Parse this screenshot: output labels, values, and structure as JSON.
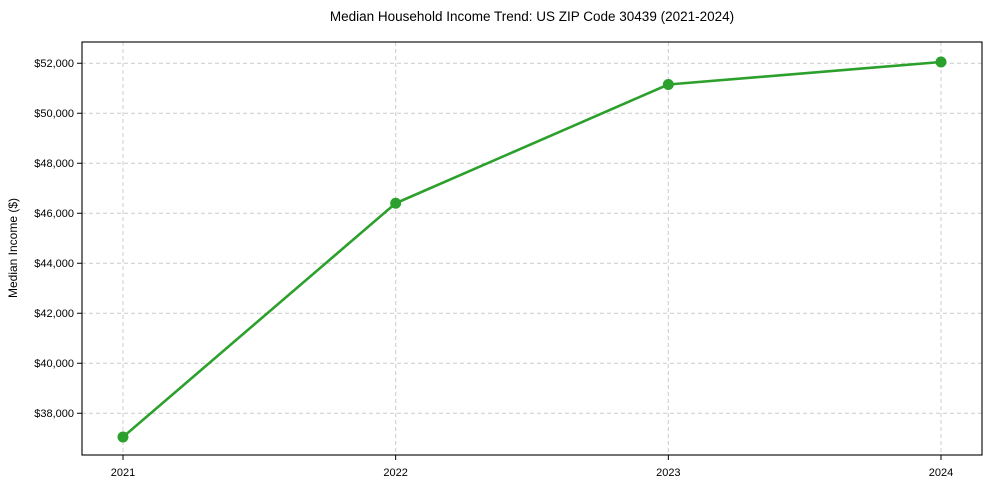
{
  "chart_data": {
    "type": "line",
    "title": "Median Household Income Trend: US ZIP Code 30439 (2021-2024)",
    "xlabel": "",
    "ylabel": "Median Income ($)",
    "categories": [
      "2021",
      "2022",
      "2023",
      "2024"
    ],
    "values": [
      37050,
      46400,
      51150,
      52050
    ],
    "line_color": "#2ca02c",
    "marker": "circle",
    "marker_color": "#2ca02c",
    "yticks": [
      {
        "value": 38000,
        "label": "$38,000"
      },
      {
        "value": 40000,
        "label": "$40,000"
      },
      {
        "value": 42000,
        "label": "$42,000"
      },
      {
        "value": 44000,
        "label": "$44,000"
      },
      {
        "value": 46000,
        "label": "$46,000"
      },
      {
        "value": 48000,
        "label": "$48,000"
      },
      {
        "value": 50000,
        "label": "$50,000"
      },
      {
        "value": 52000,
        "label": "$52,000"
      }
    ],
    "ylim": [
      36330,
      52850
    ],
    "grid": {
      "visible": true,
      "style": "dashed",
      "color": "#cccccc",
      "axes": "both"
    },
    "legend": "none",
    "background": "#ffffff",
    "axis_color": "#000000",
    "text_color": "#000000"
  }
}
